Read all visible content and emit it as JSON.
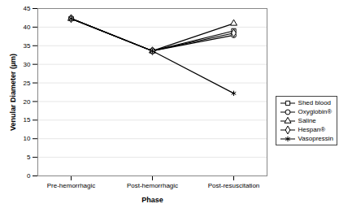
{
  "chart_data": {
    "type": "line",
    "x_label": "Phase",
    "y_label": "Venular Diameter (µm)",
    "categories": [
      "Pre-hemorrhagic",
      "Post-hemorrhagic",
      "Post-resuscitation"
    ],
    "series": [
      {
        "name": "Shed blood",
        "color": "#000000",
        "marker": "square",
        "values": [
          42.3,
          33.6,
          39.0
        ]
      },
      {
        "name": "Oxyglobin®",
        "color": "#000000",
        "marker": "circle",
        "values": [
          42.3,
          33.6,
          37.8
        ]
      },
      {
        "name": "Saline",
        "color": "#000000",
        "marker": "triangle",
        "values": [
          42.3,
          33.6,
          41.0
        ]
      },
      {
        "name": "Hespan®",
        "color": "#000000",
        "marker": "diamond",
        "values": [
          42.3,
          33.6,
          38.4
        ]
      },
      {
        "name": "Vasopressin",
        "color": "#000000",
        "marker": "asterisk",
        "values": [
          42.3,
          33.6,
          22.2
        ]
      }
    ],
    "ylim": [
      0,
      45
    ],
    "yticks": [
      0,
      5,
      10,
      15,
      20,
      25,
      30,
      35,
      40,
      45
    ],
    "grid": true,
    "legend": "right"
  }
}
